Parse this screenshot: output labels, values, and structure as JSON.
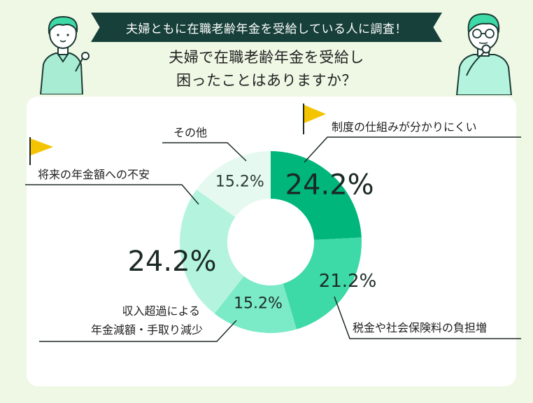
{
  "banner": {
    "text": "夫婦ともに在職老齢年金を受給している人に調査！"
  },
  "question": {
    "line1": "夫婦で在職老齢年金を受給し",
    "line2": "困ったことはありますか？"
  },
  "chart_data": {
    "type": "pie",
    "title": "",
    "slices": [
      {
        "label": "制度の仕組みが分かりにくい",
        "value": 24.2,
        "value_label": "24.2%",
        "color": "#00b67a",
        "text_color": "#1b2a26"
      },
      {
        "label": "税金や社会保険料の負担増",
        "value": 21.2,
        "value_label": "21.2%",
        "color": "#3dd9a6",
        "text_color": "#1b2a26"
      },
      {
        "label": "収入超過による年金減額・手取り減少",
        "value": 15.2,
        "value_label": "15.2%",
        "color": "#7beac7",
        "text_color": "#1b2a26"
      },
      {
        "label": "将来の年金額への不安",
        "value": 24.2,
        "value_label": "24.2%",
        "color": "#b4f4df",
        "text_color": "#1b2a26"
      },
      {
        "label": "その他",
        "value": 15.2,
        "value_label": "15.2%",
        "color": "#e6f9f1",
        "text_color": "#2a3a36"
      }
    ],
    "legend": "callouts"
  },
  "labels": {
    "s0": "制度の仕組みが分かりにくい",
    "s1": "税金や社会保険料の負担増",
    "s2_line1": "収入超過による",
    "s2_line2": "年金減額・手取り減少",
    "s3": "将来の年金額への不安",
    "s4": "その他"
  },
  "colors": {
    "background": "#eef8e4",
    "banner": "#17403a",
    "flag": "#f5c400",
    "leader_line": "#1e2a28"
  }
}
